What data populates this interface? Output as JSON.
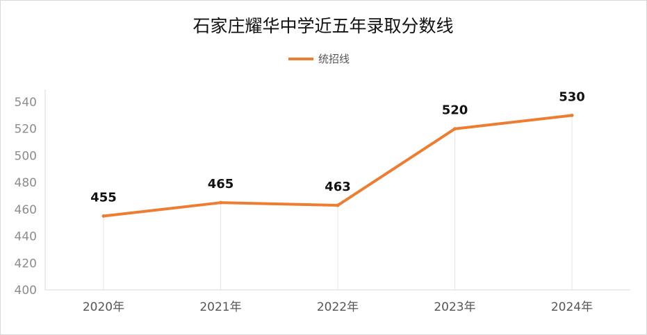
{
  "chart_data": {
    "type": "line",
    "title": "石家庄耀华中学近五年录取分数线",
    "categories": [
      "2020年",
      "2021年",
      "2022年",
      "2023年",
      "2024年"
    ],
    "series": [
      {
        "name": "统招线",
        "values": [
          455,
          465,
          463,
          520,
          530
        ],
        "color": "#ED7D31"
      }
    ],
    "ylim": [
      400,
      540
    ],
    "yticks": [
      400,
      420,
      440,
      460,
      480,
      500,
      520,
      540
    ],
    "xlabel": "",
    "ylabel": "",
    "legend_position": "top-center",
    "data_labels": true,
    "grid": "vertical-drop-lines"
  }
}
